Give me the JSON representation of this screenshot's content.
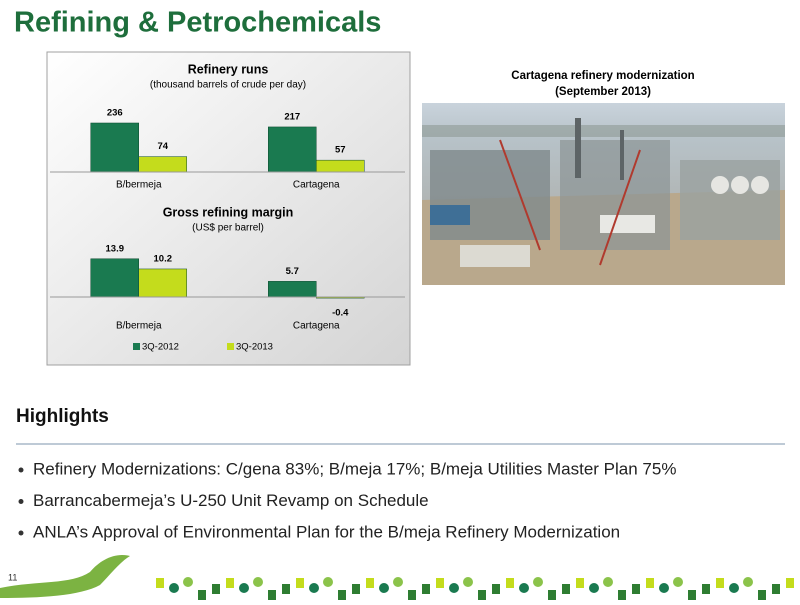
{
  "title": "Refining & Petrochemicals",
  "chart_data": [
    {
      "type": "bar",
      "title": "Refinery runs",
      "subtitle": "(thousand barrels of crude per day)",
      "categories": [
        "B/bermeja",
        "Cartagena"
      ],
      "series": [
        {
          "color": "#1a7a50",
          "values": [
            236,
            217
          ]
        },
        {
          "color": "#c4dc1c",
          "values": [
            74,
            57
          ]
        }
      ],
      "ylim": [
        0,
        260
      ]
    },
    {
      "type": "bar",
      "title": "Gross refining margin",
      "subtitle": "(US$ per barrel)",
      "categories": [
        "B/bermeja",
        "Cartagena"
      ],
      "series": [
        {
          "name": "3Q-2012",
          "color": "#1a7a50",
          "values": [
            13.9,
            5.7
          ]
        },
        {
          "name": "3Q-2013",
          "color": "#c4dc1c",
          "values": [
            10.2,
            -0.4
          ]
        }
      ],
      "ylim": [
        -2,
        16
      ],
      "legend": "bottom"
    }
  ],
  "image": {
    "caption": [
      "Cartagena refinery  modernization",
      "(September 2013)"
    ]
  },
  "highlights": {
    "heading": "Highlights",
    "items": [
      "Refinery Modernizations: C/gena 83%; B/meja 17%; B/meja Utilities Master Plan 75%",
      "Barrancabermeja’s U-250 Unit Revamp on Schedule",
      "ANLA’s Approval of Environmental Plan for the B/meja Refinery Modernization"
    ]
  },
  "page_number": "11"
}
